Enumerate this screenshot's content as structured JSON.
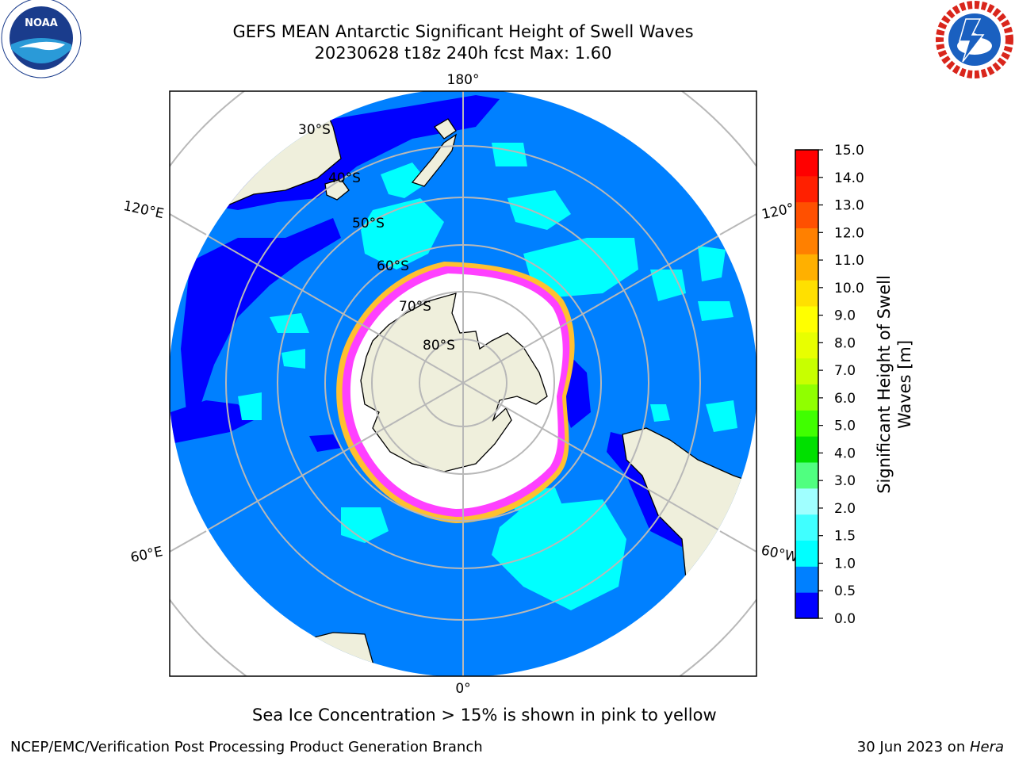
{
  "title": {
    "line1": "GEFS MEAN Antarctic Significant Height of Swell Waves",
    "line2": "20230628 t18z 240h fcst   Max: 1.60"
  },
  "logos": {
    "left": {
      "name": "noaa-logo",
      "text": "NOAA",
      "ring_text": "NATIONAL OCEANIC AND ATMOSPHERIC ADMINISTRATION · U.S. DEPARTMENT OF COMMERCE"
    },
    "right": {
      "name": "nws-logo",
      "ring_text": "NATIONAL WEATHER SERVICE"
    }
  },
  "map": {
    "projection": "south polar stereographic",
    "longitude_labels": [
      {
        "text": "180°"
      },
      {
        "text": "120°E"
      },
      {
        "text": "120°"
      },
      {
        "text": "60°E"
      },
      {
        "text": "60°W"
      },
      {
        "text": "0°"
      }
    ],
    "latitude_labels": [
      "30°S",
      "40°S",
      "50°S",
      "60°S",
      "70°S",
      "80°S"
    ],
    "colors": {
      "ocean_base": "#0080ff",
      "low_swell": "#0000ff",
      "mid_swell": "#00ffff",
      "sea_ice": "#ffffff",
      "ice_edge_pink": "#ff40ff",
      "ice_edge_yellow": "#ffc030",
      "land": "#efefdc",
      "grid": "#b8b8b8"
    }
  },
  "colorbar": {
    "label_line1": "Significant Height of Swell",
    "label_line2": "Waves [m]",
    "ticks": [
      "0.0",
      "0.5",
      "1.0",
      "1.5",
      "2.0",
      "3.0",
      "4.0",
      "5.0",
      "6.0",
      "7.0",
      "8.0",
      "9.0",
      "10.0",
      "11.0",
      "12.0",
      "13.0",
      "14.0",
      "15.0"
    ],
    "colors": [
      "#0000ff",
      "#0080ff",
      "#00ffff",
      "#40ffff",
      "#a0ffff",
      "#50ff80",
      "#00e000",
      "#40ff00",
      "#90ff00",
      "#c8ff00",
      "#e8ff00",
      "#ffff00",
      "#ffe000",
      "#ffb000",
      "#ff8000",
      "#ff5000",
      "#ff2000",
      "#ff0000"
    ]
  },
  "caption": "Sea Ice Concentration > 15% is shown in pink to yellow",
  "footer": {
    "left": "NCEP/EMC/Verification Post Processing Product Generation Branch",
    "right_prefix": "30 Jun 2023 on ",
    "right_machine": "Hera"
  }
}
